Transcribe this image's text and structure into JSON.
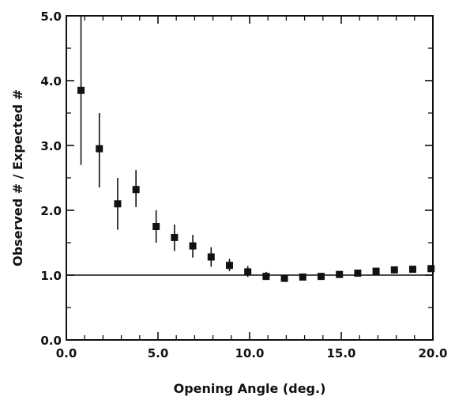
{
  "chart_data": {
    "type": "scatter",
    "title": "",
    "xlabel": "Opening  Angle (deg.)",
    "ylabel": "Observed # / Expected #",
    "xlim": [
      0.0,
      20.0
    ],
    "ylim": [
      0.0,
      5.0
    ],
    "x_ticks": [
      "0.0",
      "5.0",
      "10.0",
      "15.0",
      "20.0"
    ],
    "y_ticks": [
      "0.0",
      "1.0",
      "2.0",
      "3.0",
      "4.0",
      "5.0"
    ],
    "reference_line_y": 1.0,
    "grid": false,
    "points": [
      {
        "x": 0.8,
        "y": 3.85,
        "err_low": 2.7,
        "err_high": 5.0
      },
      {
        "x": 1.8,
        "y": 2.95,
        "err_low": 2.35,
        "err_high": 3.5
      },
      {
        "x": 2.8,
        "y": 2.1,
        "err_low": 1.7,
        "err_high": 2.5
      },
      {
        "x": 3.8,
        "y": 2.32,
        "err_low": 2.05,
        "err_high": 2.62
      },
      {
        "x": 4.9,
        "y": 1.75,
        "err_low": 1.5,
        "err_high": 2.0
      },
      {
        "x": 5.9,
        "y": 1.58,
        "err_low": 1.37,
        "err_high": 1.78
      },
      {
        "x": 6.9,
        "y": 1.45,
        "err_low": 1.27,
        "err_high": 1.62
      },
      {
        "x": 7.9,
        "y": 1.28,
        "err_low": 1.13,
        "err_high": 1.43
      },
      {
        "x": 8.9,
        "y": 1.15,
        "err_low": 1.06,
        "err_high": 1.25
      },
      {
        "x": 9.9,
        "y": 1.05,
        "err_low": 0.97,
        "err_high": 1.14
      },
      {
        "x": 10.9,
        "y": 0.98,
        "err_low": 0.93,
        "err_high": 1.05
      },
      {
        "x": 11.9,
        "y": 0.95,
        "err_low": 0.91,
        "err_high": 1.0
      },
      {
        "x": 12.9,
        "y": 0.97,
        "err_low": 0.93,
        "err_high": 1.02
      },
      {
        "x": 13.9,
        "y": 0.98,
        "err_low": 0.94,
        "err_high": 1.03
      },
      {
        "x": 14.9,
        "y": 1.01,
        "err_low": 0.97,
        "err_high": 1.05
      },
      {
        "x": 15.9,
        "y": 1.03,
        "err_low": 0.99,
        "err_high": 1.07
      },
      {
        "x": 16.9,
        "y": 1.06,
        "err_low": 1.02,
        "err_high": 1.1
      },
      {
        "x": 17.9,
        "y": 1.08,
        "err_low": 1.05,
        "err_high": 1.12
      },
      {
        "x": 18.9,
        "y": 1.09,
        "err_low": 1.06,
        "err_high": 1.13
      },
      {
        "x": 19.9,
        "y": 1.1,
        "err_low": 1.07,
        "err_high": 1.13
      }
    ]
  }
}
